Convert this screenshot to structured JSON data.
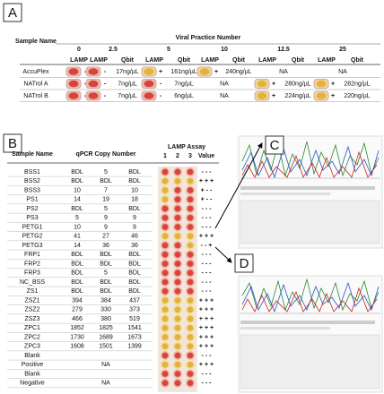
{
  "panels": [
    "A",
    "B",
    "C",
    "D"
  ],
  "table_a": {
    "corner": "Sample Name",
    "title": "Viral Practice Number",
    "columns": [
      "0",
      "2.5",
      "5",
      "10",
      "12.5",
      "25"
    ],
    "subheaders": [
      "LAMP",
      "Qbit"
    ],
    "rows": [
      {
        "name": "AccuPlex",
        "cells": [
          {
            "lamp": "-"
          },
          {
            "lamp": "-",
            "qbit": "17ng/µL"
          },
          {
            "lamp": "+",
            "qbit": "161ng/µL"
          },
          {
            "lamp": "+",
            "qbit": "240ng/µL"
          },
          "NA",
          "NA"
        ]
      },
      {
        "name": "NATrol A",
        "cells": [
          {
            "lamp": "-"
          },
          {
            "lamp": "-",
            "qbit": "7ng/µL"
          },
          {
            "lamp": "-",
            "qbit": "7ng/µL"
          },
          "NA",
          {
            "lamp": "+",
            "qbit": "280ng/µL"
          },
          {
            "lamp": "+",
            "qbit": "282ng/µL"
          }
        ]
      },
      {
        "name": "NATrol B",
        "cells": [
          {
            "lamp": "-"
          },
          {
            "lamp": "-",
            "qbit": "7ng/µL"
          },
          {
            "lamp": "-",
            "qbit": "6ng/µL"
          },
          "NA",
          {
            "lamp": "+",
            "qbit": "224ng/µL"
          },
          {
            "lamp": "+",
            "qbit": "220ng/µL"
          }
        ]
      }
    ]
  },
  "table_b": {
    "headers": [
      "Sample Name",
      "qPCR Copy Number",
      "LAMP Assay"
    ],
    "lamp_columns": [
      "1",
      "2",
      "3",
      "Value"
    ],
    "rows": [
      {
        "name": "BSS1",
        "qpcr": [
          "BDL",
          5,
          "BDL"
        ],
        "value": "- - -"
      },
      {
        "name": "BSS2",
        "qpcr": [
          "BDL",
          "BDL",
          "BDL"
        ],
        "value": "+ + +"
      },
      {
        "name": "BSS3",
        "qpcr": [
          10,
          7,
          10
        ],
        "value": "+ - -"
      },
      {
        "name": "PS1",
        "qpcr": [
          14,
          19,
          18
        ],
        "value": "+ - -"
      },
      {
        "name": "PS2",
        "qpcr": [
          "BDL",
          5,
          "BDL"
        ],
        "value": "- - -"
      },
      {
        "name": "PS3",
        "qpcr": [
          5,
          9,
          9
        ],
        "value": "- - -"
      },
      {
        "name": "PETG1",
        "qpcr": [
          10,
          9,
          9
        ],
        "value": "- - -"
      },
      {
        "name": "PETG2",
        "qpcr": [
          41,
          27,
          46
        ],
        "value": "+ + +"
      },
      {
        "name": "PETG3",
        "qpcr": [
          14,
          36,
          36
        ],
        "value": "- - +"
      },
      {
        "name": "FRP1",
        "qpcr": [
          "BDL",
          "BDL",
          "BDL"
        ],
        "value": "- - -"
      },
      {
        "name": "FRP2",
        "qpcr": [
          "BDL",
          "BDL",
          "BDL"
        ],
        "value": "- - -"
      },
      {
        "name": "FRP3",
        "qpcr": [
          "BDL",
          5,
          "BDL"
        ],
        "value": "- - -"
      },
      {
        "name": "NC_BSS",
        "qpcr": [
          "BDL",
          "BDL",
          "BDL"
        ],
        "value": "- - -"
      },
      {
        "name": "ZS1",
        "qpcr": [
          "BDL",
          "BDL",
          "BDL"
        ],
        "value": "- - -"
      },
      {
        "name": "ZSZ1",
        "qpcr": [
          394,
          384,
          437
        ],
        "value": "+ + +"
      },
      {
        "name": "ZSZ2",
        "qpcr": [
          279,
          330,
          373
        ],
        "value": "+ + +"
      },
      {
        "name": "ZSZ3",
        "qpcr": [
          466,
          380,
          519
        ],
        "value": "+ + +"
      },
      {
        "name": "ZPC1",
        "qpcr": [
          1852,
          1825,
          1541
        ],
        "value": "+ + +"
      },
      {
        "name": "ZPC2",
        "qpcr": [
          1730,
          1689,
          1673
        ],
        "value": "+ + +"
      },
      {
        "name": "ZPC3",
        "qpcr": [
          1608,
          1501,
          1399
        ],
        "value": "+ + +"
      },
      {
        "name": "Blank",
        "qpcr": [],
        "value": "- - -"
      },
      {
        "name": "Positive",
        "qpcr": [
          "NA"
        ],
        "value": "+ + +"
      },
      {
        "name": "Blank",
        "qpcr": [],
        "value": "- - -"
      },
      {
        "name": "Negative",
        "qpcr": [
          "NA"
        ],
        "value": "- - -"
      }
    ]
  }
}
